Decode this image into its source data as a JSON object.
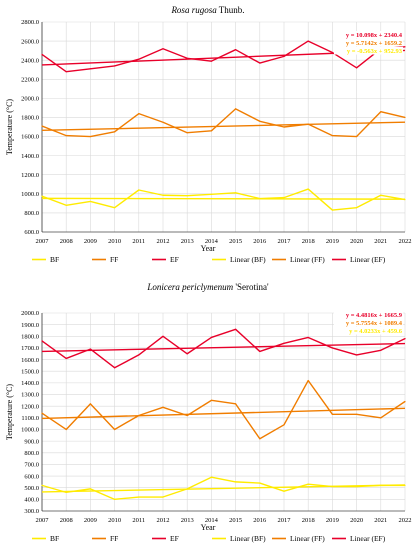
{
  "colors": {
    "BF": "#ffeb00",
    "FF": "#f07d00",
    "EF": "#e8002a",
    "grid": "#d9d9d9",
    "eqbox": "#ffffff"
  },
  "chart_data": [
    {
      "type": "line",
      "title_main": "Rosa rugosa",
      "title_suffix": "Thunb.",
      "xlabel": "Year",
      "ylabel": "Temperature (°C)",
      "ylim": [
        600,
        2800
      ],
      "yticks": [
        "600.0",
        "800.0",
        "1000.0",
        "1200.0",
        "1400.0",
        "1600.0",
        "1800.0",
        "2000.0",
        "2200.0",
        "2400.0",
        "2600.0",
        "2800.0"
      ],
      "ytick_values": [
        600,
        800,
        1000,
        1200,
        1400,
        1600,
        1800,
        2000,
        2200,
        2400,
        2600,
        2800
      ],
      "x": [
        2007,
        2008,
        2009,
        2010,
        2011,
        2012,
        2013,
        2014,
        2015,
        2016,
        2017,
        2018,
        2019,
        2020,
        2021,
        2022
      ],
      "series": [
        {
          "name": "BF",
          "color_key": "BF",
          "values": [
            975,
            880,
            920,
            855,
            1040,
            985,
            980,
            995,
            1010,
            950,
            960,
            1050,
            830,
            855,
            985,
            940
          ]
        },
        {
          "name": "FF",
          "color_key": "FF",
          "values": [
            1710,
            1610,
            1600,
            1650,
            1840,
            1750,
            1640,
            1660,
            1890,
            1760,
            1700,
            1730,
            1610,
            1600,
            1860,
            1800
          ]
        },
        {
          "name": "EF",
          "color_key": "EF",
          "values": [
            2460,
            2280,
            2310,
            2340,
            2410,
            2520,
            2420,
            2390,
            2510,
            2370,
            2440,
            2600,
            2480,
            2320,
            2520,
            2540
          ]
        }
      ],
      "trendlines": [
        {
          "name": "Linear (BF)",
          "color_key": "BF",
          "slope": -0.563,
          "intercept": 952.93,
          "label": "y = -0.563x + 952.93"
        },
        {
          "name": "Linear (FF)",
          "color_key": "FF",
          "slope": 5.7142,
          "intercept": 1659.2,
          "label": "y = 5.7142x + 1659.2"
        },
        {
          "name": "Linear (EF)",
          "color_key": "EF",
          "slope": 10.098,
          "intercept": 2340.4,
          "label": "y = 10.098x + 2340.4"
        }
      ],
      "legend": [
        "BF",
        "FF",
        "EF",
        "Linear (BF)",
        "Linear (FF)",
        "Linear (EF)"
      ]
    },
    {
      "type": "line",
      "title_main": "Lonicera periclymenum",
      "title_suffix": "'Serotina'",
      "xlabel": "Year",
      "ylabel": "Temperature (°C)",
      "ylim": [
        300,
        2000
      ],
      "yticks": [
        "300.0",
        "400.0",
        "500.0",
        "600.0",
        "700.0",
        "800.0",
        "900.0",
        "1000.0",
        "1100.0",
        "1200.0",
        "1300.0",
        "1400.0",
        "1500.0",
        "1600.0",
        "1700.0",
        "1800.0",
        "1900.0",
        "2000.0"
      ],
      "ytick_values": [
        300,
        400,
        500,
        600,
        700,
        800,
        900,
        1000,
        1100,
        1200,
        1300,
        1400,
        1500,
        1600,
        1700,
        1800,
        1900,
        2000
      ],
      "x": [
        2007,
        2008,
        2009,
        2010,
        2011,
        2012,
        2013,
        2014,
        2015,
        2016,
        2017,
        2018,
        2019,
        2020,
        2021,
        2022
      ],
      "series": [
        {
          "name": "BF",
          "color_key": "BF",
          "values": [
            520,
            460,
            490,
            400,
            420,
            420,
            490,
            590,
            550,
            540,
            470,
            530,
            510,
            510,
            520,
            520
          ]
        },
        {
          "name": "FF",
          "color_key": "FF",
          "values": [
            1140,
            1000,
            1220,
            1000,
            1120,
            1190,
            1120,
            1250,
            1220,
            920,
            1040,
            1420,
            1130,
            1130,
            1100,
            1240
          ]
        },
        {
          "name": "EF",
          "color_key": "EF",
          "values": [
            1760,
            1610,
            1690,
            1530,
            1640,
            1800,
            1650,
            1790,
            1860,
            1670,
            1740,
            1790,
            1700,
            1640,
            1680,
            1780
          ]
        }
      ],
      "trendlines": [
        {
          "name": "Linear (BF)",
          "color_key": "BF",
          "slope": 4.0233,
          "intercept": 459.6,
          "label": "y = 4.0233x + 459.6"
        },
        {
          "name": "Linear (FF)",
          "color_key": "FF",
          "slope": 5.7554,
          "intercept": 1089.4,
          "label": "y = 5.7554x + 1089.4"
        },
        {
          "name": "Linear (EF)",
          "color_key": "EF",
          "slope": 4.4816,
          "intercept": 1665.9,
          "label": "y = 4.4816x + 1665.9"
        }
      ],
      "legend": [
        "BF",
        "FF",
        "EF",
        "Linear (BF)",
        "Linear (FF)",
        "Linear (EF)"
      ]
    }
  ]
}
